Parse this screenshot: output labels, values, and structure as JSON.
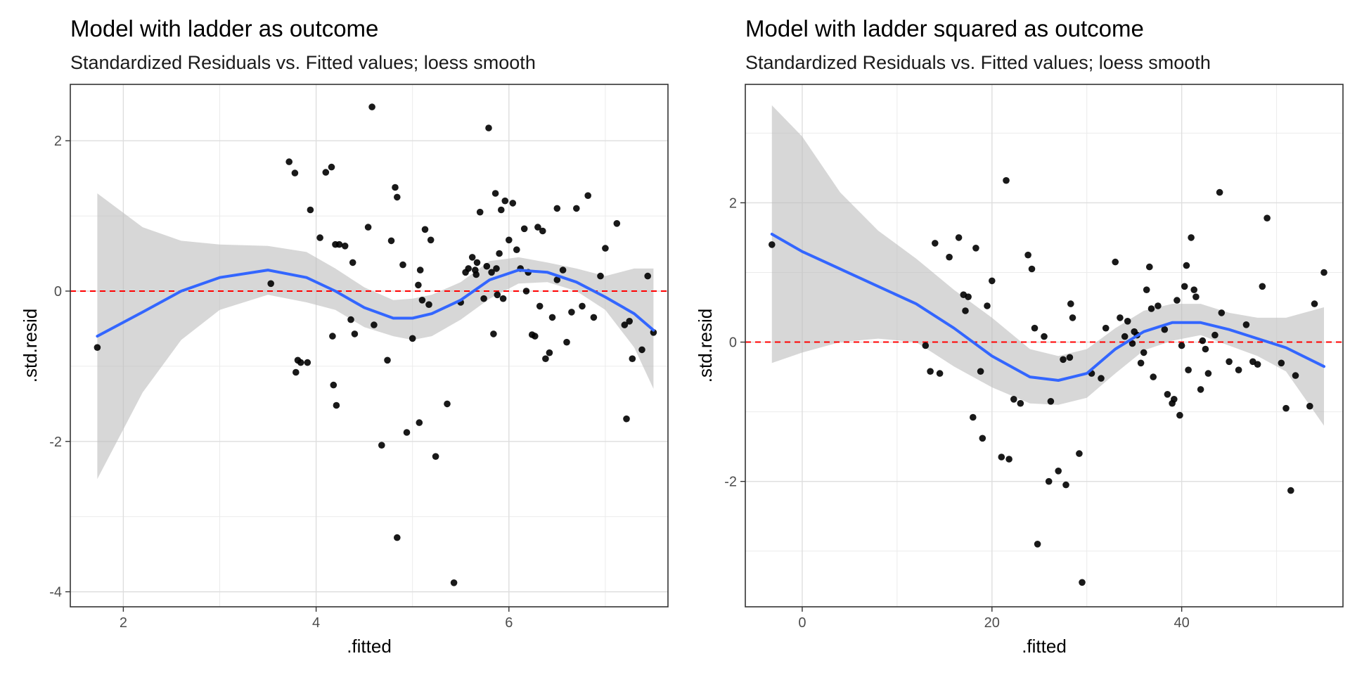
{
  "chart_data": [
    {
      "type": "scatter",
      "title": "Model with ladder as outcome",
      "subtitle": "Standardized Residuals vs. Fitted values; loess smooth",
      "xlabel": ".fitted",
      "ylabel": ".std.resid",
      "xlim": [
        1.45,
        7.65
      ],
      "ylim": [
        -4.2,
        2.75
      ],
      "x_ticks": [
        2,
        4,
        6
      ],
      "x_tick_labels": [
        "2",
        "4",
        "6"
      ],
      "y_ticks": [
        -4,
        -2,
        0,
        2
      ],
      "y_tick_labels": [
        "-4",
        "-2",
        "0",
        "2"
      ],
      "grid": true,
      "reference_line": {
        "y": 0,
        "color": "#ff0000",
        "style": "dashed"
      },
      "smooth": {
        "method": "loess",
        "color": "#3366ff",
        "band_color": "#bfbfbf",
        "x": [
          1.73,
          2.2,
          2.6,
          3.0,
          3.5,
          3.9,
          4.2,
          4.5,
          4.8,
          5.0,
          5.2,
          5.5,
          5.8,
          6.1,
          6.4,
          6.7,
          7.0,
          7.3,
          7.5
        ],
        "y": [
          -0.6,
          -0.28,
          0.0,
          0.18,
          0.28,
          0.18,
          0.0,
          -0.22,
          -0.36,
          -0.36,
          -0.3,
          -0.12,
          0.15,
          0.28,
          0.25,
          0.12,
          -0.08,
          -0.3,
          -0.52
        ],
        "lower": [
          -2.5,
          -1.35,
          -0.65,
          -0.25,
          -0.05,
          -0.15,
          -0.25,
          -0.48,
          -0.6,
          -0.65,
          -0.6,
          -0.38,
          -0.1,
          0.1,
          0.12,
          0.0,
          -0.25,
          -0.75,
          -1.3
        ],
        "upper": [
          1.3,
          0.85,
          0.67,
          0.62,
          0.6,
          0.52,
          0.3,
          0.05,
          -0.12,
          -0.1,
          -0.05,
          0.12,
          0.4,
          0.45,
          0.38,
          0.3,
          0.2,
          0.3,
          0.3
        ]
      },
      "points": {
        "color": "#000000",
        "x": [
          1.73,
          3.53,
          3.72,
          3.79,
          3.81,
          3.91,
          3.78,
          3.84,
          3.94,
          4.04,
          4.1,
          4.16,
          4.18,
          4.21,
          4.24,
          4.3,
          4.36,
          4.38,
          4.4,
          4.2,
          4.17,
          4.54,
          4.58,
          4.6,
          4.68,
          4.74,
          4.78,
          4.84,
          4.82,
          4.84,
          4.9,
          4.94,
          5.0,
          5.06,
          5.08,
          5.1,
          5.13,
          5.17,
          5.19,
          5.24,
          5.36,
          5.43,
          5.5,
          5.55,
          5.58,
          5.62,
          5.65,
          5.67,
          5.7,
          5.74,
          5.77,
          5.79,
          5.82,
          5.84,
          5.86,
          5.88,
          5.9,
          5.92,
          5.94,
          5.96,
          6.0,
          6.04,
          6.08,
          6.12,
          6.16,
          6.2,
          6.24,
          6.27,
          6.3,
          6.32,
          6.35,
          6.38,
          6.42,
          6.45,
          6.5,
          6.56,
          6.6,
          6.65,
          6.7,
          6.76,
          6.82,
          6.88,
          6.95,
          7.0,
          7.12,
          7.2,
          7.22,
          7.25,
          7.28,
          7.38,
          7.44,
          7.5,
          5.07,
          5.66,
          5.87,
          6.18,
          6.5
        ],
        "y": [
          -0.75,
          0.1,
          1.72,
          -1.08,
          -0.92,
          -0.95,
          1.57,
          -0.95,
          1.08,
          0.71,
          1.58,
          1.65,
          -1.25,
          -1.52,
          0.62,
          0.6,
          -0.38,
          0.38,
          -0.57,
          0.62,
          -0.6,
          0.85,
          2.45,
          -0.45,
          -2.05,
          -0.92,
          0.67,
          1.25,
          1.38,
          -3.28,
          0.35,
          -1.88,
          -0.63,
          0.08,
          0.28,
          -0.12,
          0.82,
          -0.18,
          0.68,
          -2.2,
          -1.5,
          -3.88,
          -0.15,
          0.25,
          0.3,
          0.45,
          0.28,
          0.38,
          1.05,
          -0.1,
          0.33,
          2.17,
          0.25,
          -0.57,
          1.3,
          -0.05,
          0.5,
          1.08,
          -0.1,
          1.2,
          0.68,
          1.17,
          0.55,
          0.3,
          0.83,
          0.25,
          -0.58,
          -0.6,
          0.85,
          -0.2,
          0.8,
          -0.9,
          -0.82,
          -0.35,
          1.1,
          0.28,
          -0.68,
          -0.28,
          1.1,
          -0.2,
          1.27,
          -0.35,
          0.2,
          0.57,
          0.9,
          -0.45,
          -1.7,
          -0.4,
          -0.9,
          -0.78,
          0.2,
          -0.55,
          -1.75,
          0.22,
          0.3,
          0.0,
          0.15
        ]
      }
    },
    {
      "type": "scatter",
      "title": "Model with ladder squared as outcome",
      "subtitle": "Standardized Residuals vs. Fitted values; loess smooth",
      "xlabel": ".fitted",
      "ylabel": ".std.resid",
      "xlim": [
        -6,
        57
      ],
      "ylim": [
        -3.8,
        3.7
      ],
      "x_ticks": [
        0,
        20,
        40
      ],
      "x_tick_labels": [
        "0",
        "20",
        "40"
      ],
      "y_ticks": [
        -2,
        0,
        2
      ],
      "y_tick_labels": [
        "-2",
        "0",
        "2"
      ],
      "grid": true,
      "reference_line": {
        "y": 0,
        "color": "#ff0000",
        "style": "dashed"
      },
      "smooth": {
        "method": "loess",
        "color": "#3366ff",
        "band_color": "#bfbfbf",
        "x": [
          -3.2,
          0,
          4,
          8,
          12,
          16,
          20,
          24,
          27,
          30,
          33,
          36,
          39,
          42,
          45,
          48,
          51,
          55
        ],
        "y": [
          1.55,
          1.3,
          1.05,
          0.8,
          0.55,
          0.2,
          -0.2,
          -0.5,
          -0.55,
          -0.45,
          -0.1,
          0.15,
          0.28,
          0.28,
          0.18,
          0.05,
          -0.08,
          -0.35
        ],
        "lower": [
          -0.3,
          -0.15,
          0.0,
          0.05,
          0.0,
          -0.35,
          -0.65,
          -0.88,
          -0.9,
          -0.8,
          -0.45,
          -0.12,
          0.02,
          0.1,
          -0.05,
          -0.2,
          -0.42,
          -1.2
        ],
        "upper": [
          3.4,
          2.95,
          2.15,
          1.6,
          1.2,
          0.75,
          0.35,
          -0.1,
          -0.2,
          -0.1,
          0.2,
          0.45,
          0.55,
          0.55,
          0.42,
          0.35,
          0.35,
          0.5
        ]
      },
      "points": {
        "color": "#000000",
        "x": [
          -3.2,
          13,
          13.5,
          14,
          14.5,
          15.5,
          16.5,
          17,
          17.2,
          17.5,
          18,
          18.3,
          18.8,
          19,
          19.5,
          20,
          21,
          21.5,
          21.8,
          22.3,
          23,
          23.8,
          24.2,
          24.5,
          24.8,
          25.5,
          26,
          26.2,
          27,
          27.5,
          27.8,
          28.2,
          28.5,
          29.2,
          29.5,
          30.5,
          31.5,
          32,
          33,
          33.5,
          34,
          34.3,
          34.8,
          35,
          35.3,
          35.7,
          36,
          36.3,
          36.6,
          37,
          37.5,
          38.2,
          38.5,
          39,
          39.2,
          39.5,
          39.8,
          40,
          40.3,
          40.7,
          41,
          41.3,
          41.5,
          42,
          42.2,
          42.5,
          42.8,
          43.5,
          44,
          45,
          46,
          46.8,
          47.5,
          48,
          48.5,
          49,
          50.5,
          51,
          51.5,
          52,
          53.5,
          54,
          55,
          28.3,
          36.8,
          40.5,
          44.2
        ],
        "y": [
          1.4,
          -0.05,
          -0.42,
          1.42,
          -0.45,
          1.22,
          1.5,
          0.68,
          0.45,
          0.65,
          -1.08,
          1.35,
          -0.42,
          -1.38,
          0.52,
          0.88,
          -1.65,
          2.32,
          -1.68,
          -0.82,
          -0.88,
          1.25,
          1.05,
          0.2,
          -2.9,
          0.08,
          -2.0,
          -0.85,
          -1.85,
          -0.25,
          -2.05,
          -0.22,
          0.35,
          -1.6,
          -3.45,
          -0.45,
          -0.52,
          0.2,
          1.15,
          0.35,
          0.08,
          0.3,
          -0.02,
          0.15,
          0.1,
          -0.3,
          -0.15,
          0.75,
          1.08,
          -0.5,
          0.52,
          0.18,
          -0.75,
          -0.88,
          -0.82,
          0.6,
          -1.05,
          -0.05,
          0.8,
          -0.4,
          1.5,
          0.75,
          0.65,
          -0.68,
          0.02,
          -0.1,
          -0.45,
          0.1,
          2.15,
          -0.28,
          -0.4,
          0.25,
          -0.28,
          -0.32,
          0.8,
          1.78,
          -0.3,
          -0.95,
          -2.13,
          -0.48,
          -0.92,
          0.55,
          1.0,
          0.55,
          0.48,
          1.1,
          0.42
        ]
      }
    }
  ]
}
